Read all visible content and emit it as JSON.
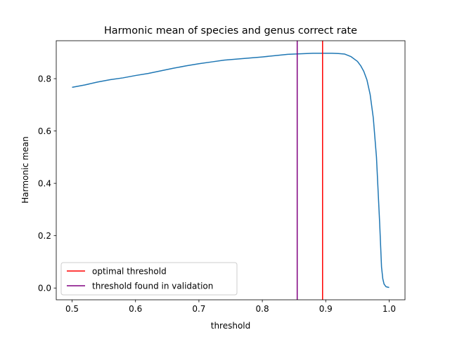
{
  "chart_data": {
    "type": "line",
    "title": "Harmonic mean of species and genus correct rate",
    "xlabel": "threshold",
    "ylabel": "Harmonic mean",
    "xlim": [
      0.475,
      1.025
    ],
    "ylim": [
      -0.045,
      0.945
    ],
    "xticks": [
      0.5,
      0.6,
      0.7,
      0.8,
      0.9,
      1.0
    ],
    "xtick_labels": [
      "0.5",
      "0.6",
      "0.7",
      "0.8",
      "0.9",
      "1.0"
    ],
    "yticks": [
      0.0,
      0.2,
      0.4,
      0.6,
      0.8
    ],
    "ytick_labels": [
      "0.0",
      "0.2",
      "0.4",
      "0.6",
      "0.8"
    ],
    "grid": false,
    "legend_position": "lower-left",
    "series": [
      {
        "color": "#1f77b4",
        "x": [
          0.5,
          0.52,
          0.54,
          0.56,
          0.58,
          0.6,
          0.62,
          0.64,
          0.66,
          0.68,
          0.7,
          0.72,
          0.74,
          0.76,
          0.78,
          0.8,
          0.82,
          0.84,
          0.86,
          0.88,
          0.9,
          0.91,
          0.92,
          0.93,
          0.94,
          0.95,
          0.955,
          0.96,
          0.965,
          0.97,
          0.975,
          0.98,
          0.985,
          0.988,
          0.99,
          0.992,
          0.995,
          1.0
        ],
        "y": [
          0.767,
          0.776,
          0.787,
          0.796,
          0.803,
          0.812,
          0.82,
          0.83,
          0.84,
          0.849,
          0.857,
          0.864,
          0.871,
          0.875,
          0.879,
          0.883,
          0.888,
          0.893,
          0.895,
          0.897,
          0.897,
          0.897,
          0.896,
          0.894,
          0.884,
          0.866,
          0.85,
          0.828,
          0.795,
          0.74,
          0.65,
          0.5,
          0.25,
          0.08,
          0.035,
          0.015,
          0.005,
          0.002
        ]
      }
    ],
    "vlines": [
      {
        "name": "optimal threshold",
        "x": 0.895,
        "color": "#ff0000"
      },
      {
        "name": "threshold found in validation",
        "x": 0.855,
        "color": "#800080"
      }
    ]
  }
}
